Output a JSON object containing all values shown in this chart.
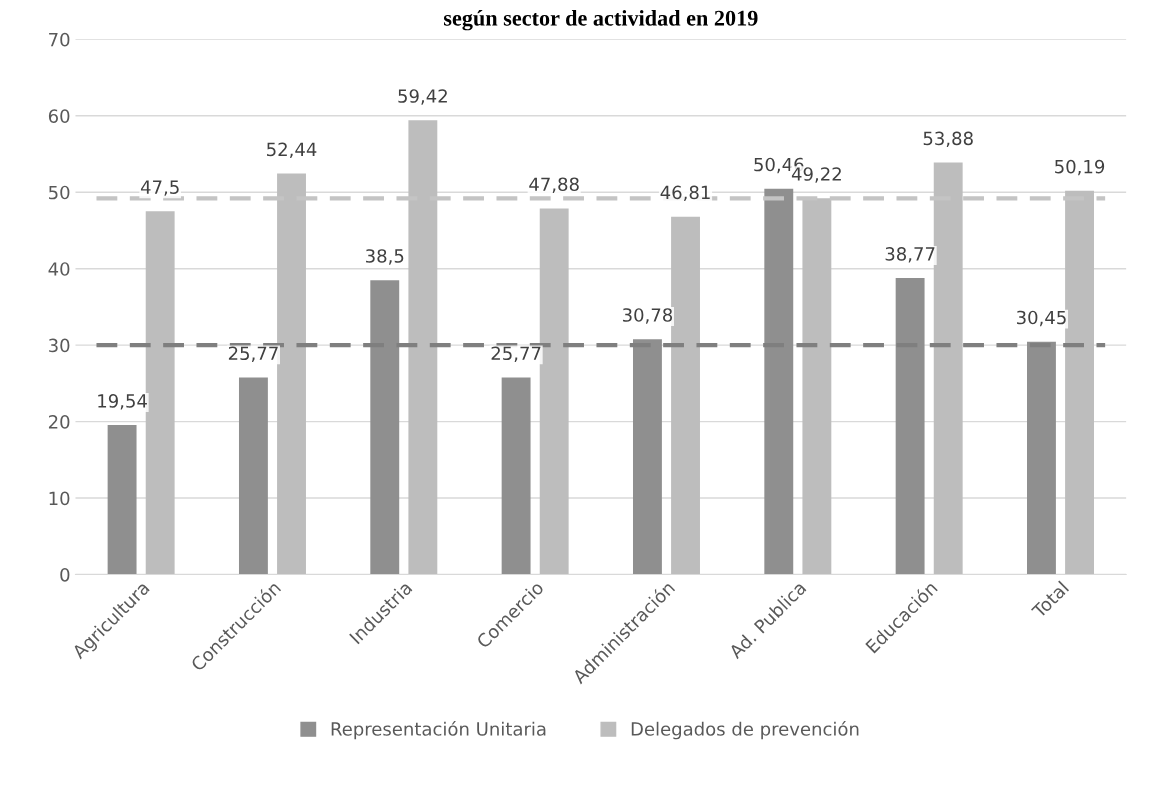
{
  "chart_data": {
    "type": "bar",
    "title": "según sector de actividad en 2019",
    "categories": [
      "Agricultura",
      "Construcción",
      "Industria",
      "Comercio",
      "Administración",
      "Ad. Publica",
      "Educación",
      "Total"
    ],
    "series": [
      {
        "name": "Representación Unitaria",
        "color": "#8f8f8f",
        "values": [
          19.54,
          25.77,
          38.5,
          25.77,
          30.78,
          50.46,
          38.77,
          30.45
        ],
        "value_labels": [
          "19,54",
          "25,77",
          "38,5",
          "25,77",
          "30,78",
          "50,46",
          "38,77",
          "30,45"
        ]
      },
      {
        "name": "Delegados de prevención",
        "color": "#bdbdbd",
        "values": [
          47.5,
          52.44,
          59.42,
          47.88,
          46.81,
          49.22,
          53.88,
          50.19
        ],
        "value_labels": [
          "47,5",
          "52,44",
          "59,42",
          "47,88",
          "46,81",
          "49,22",
          "53,88",
          "50,19"
        ]
      }
    ],
    "ylim": [
      0,
      70
    ],
    "yticks": [
      0,
      10,
      20,
      30,
      40,
      50,
      60,
      70
    ],
    "grid": "y",
    "legend": "bottom",
    "ref_lines": [
      {
        "axis": "y",
        "value": 30,
        "color": "#7f7f7f",
        "line_style": "dashed"
      },
      {
        "axis": "y",
        "value": 49.2,
        "color": "#c4c4c4",
        "line_style": "dashed"
      }
    ]
  }
}
